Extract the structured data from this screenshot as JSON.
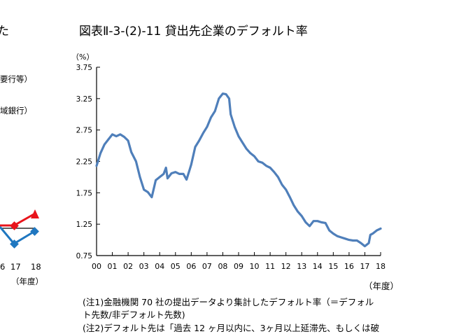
{
  "title": "図表Ⅱ-3-(2)-11 貸出先企業のデフォルト率",
  "unit_label": "（%）",
  "xaxis_unit": "（年度）",
  "notes": [
    "(注1)金融機関 70 社の提出データより集計したデフォルト率（＝デフォル",
    "ト先数/非デフォルト先数)",
    "(注2)デフォルト先は「過去 12 ヶ月以内に、3ヶ月以上延滞先、もしくは破"
  ],
  "left_partial": {
    "text_top": "た",
    "label1": "要行等）",
    "label2": "域銀行）",
    "ticks": [
      "6",
      "17",
      "18"
    ],
    "xunit": "（年度）",
    "series_colors": {
      "red": "#e8141b",
      "blue": "#1f77c0",
      "black": "#000000"
    }
  },
  "chart_data": {
    "type": "line",
    "title": "図表Ⅱ-3-(2)-11 貸出先企業のデフォルト率",
    "xlabel": "（年度）",
    "ylabel": "（%）",
    "ylim": [
      0.75,
      3.75
    ],
    "yticks": [
      "3.75",
      "3.25",
      "2.75",
      "2.25",
      "1.75",
      "1.25",
      "0.75"
    ],
    "xticks": [
      "00",
      "01",
      "02",
      "03",
      "04",
      "05",
      "06",
      "07",
      "08",
      "09",
      "10",
      "11",
      "12",
      "13",
      "14",
      "15",
      "16",
      "17",
      "18"
    ],
    "xlim": [
      0,
      18
    ],
    "grid": false,
    "line_color": "#4f7fba",
    "series": [
      {
        "points": [
          [
            0.0,
            2.18
          ],
          [
            0.25,
            2.38
          ],
          [
            0.5,
            2.52
          ],
          [
            0.75,
            2.6
          ],
          [
            1.0,
            2.68
          ],
          [
            1.25,
            2.65
          ],
          [
            1.5,
            2.68
          ],
          [
            1.75,
            2.64
          ],
          [
            2.0,
            2.58
          ],
          [
            2.2,
            2.4
          ],
          [
            2.5,
            2.25
          ],
          [
            2.75,
            2.0
          ],
          [
            3.0,
            1.8
          ],
          [
            3.25,
            1.76
          ],
          [
            3.5,
            1.68
          ],
          [
            3.75,
            1.95
          ],
          [
            4.0,
            2.0
          ],
          [
            4.25,
            2.05
          ],
          [
            4.4,
            2.15
          ],
          [
            4.5,
            1.98
          ],
          [
            4.75,
            2.06
          ],
          [
            5.0,
            2.08
          ],
          [
            5.25,
            2.05
          ],
          [
            5.5,
            2.05
          ],
          [
            5.7,
            1.96
          ],
          [
            5.9,
            2.12
          ],
          [
            6.0,
            2.2
          ],
          [
            6.25,
            2.48
          ],
          [
            6.5,
            2.58
          ],
          [
            6.75,
            2.7
          ],
          [
            7.0,
            2.8
          ],
          [
            7.25,
            2.95
          ],
          [
            7.5,
            3.05
          ],
          [
            7.75,
            3.25
          ],
          [
            8.0,
            3.33
          ],
          [
            8.2,
            3.32
          ],
          [
            8.4,
            3.25
          ],
          [
            8.5,
            3.0
          ],
          [
            8.75,
            2.8
          ],
          [
            9.0,
            2.65
          ],
          [
            9.25,
            2.55
          ],
          [
            9.5,
            2.45
          ],
          [
            9.75,
            2.38
          ],
          [
            10.0,
            2.33
          ],
          [
            10.25,
            2.25
          ],
          [
            10.5,
            2.23
          ],
          [
            10.75,
            2.18
          ],
          [
            11.0,
            2.15
          ],
          [
            11.25,
            2.08
          ],
          [
            11.5,
            2.0
          ],
          [
            11.75,
            1.88
          ],
          [
            12.0,
            1.8
          ],
          [
            12.25,
            1.68
          ],
          [
            12.5,
            1.55
          ],
          [
            12.75,
            1.45
          ],
          [
            13.0,
            1.38
          ],
          [
            13.25,
            1.28
          ],
          [
            13.5,
            1.22
          ],
          [
            13.75,
            1.3
          ],
          [
            14.0,
            1.3
          ],
          [
            14.25,
            1.28
          ],
          [
            14.5,
            1.27
          ],
          [
            14.75,
            1.15
          ],
          [
            15.0,
            1.1
          ],
          [
            15.25,
            1.06
          ],
          [
            15.5,
            1.04
          ],
          [
            15.75,
            1.02
          ],
          [
            16.0,
            1.0
          ],
          [
            16.25,
            0.99
          ],
          [
            16.5,
            0.99
          ],
          [
            16.75,
            0.95
          ],
          [
            17.0,
            0.9
          ],
          [
            17.25,
            0.95
          ],
          [
            17.35,
            1.08
          ],
          [
            17.5,
            1.1
          ],
          [
            17.75,
            1.15
          ],
          [
            18.0,
            1.18
          ]
        ]
      }
    ]
  }
}
